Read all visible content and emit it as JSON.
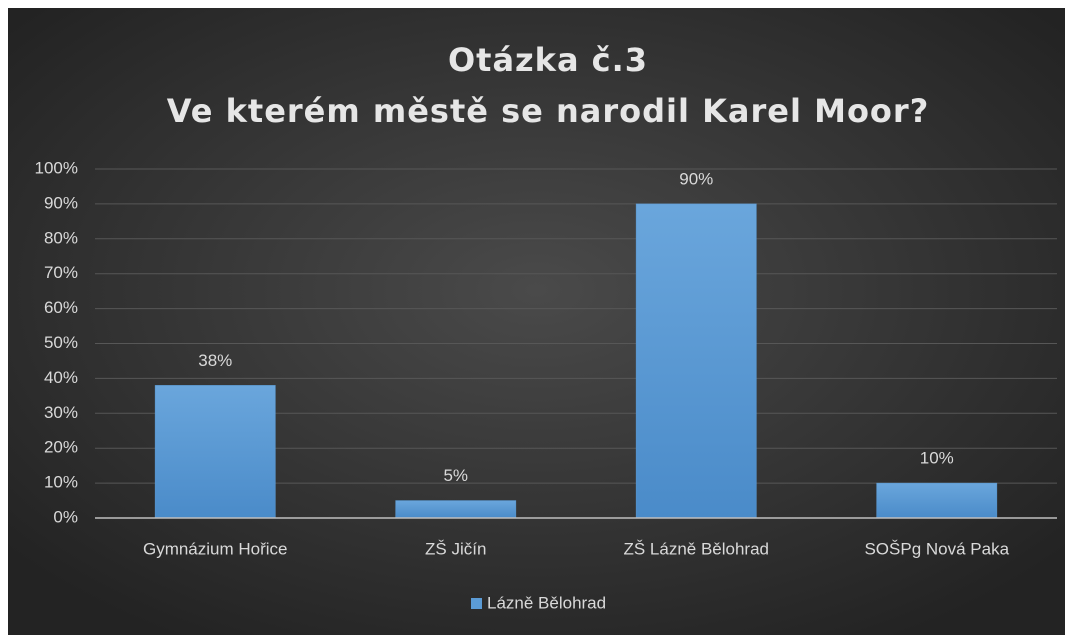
{
  "chart_data": {
    "type": "bar",
    "title": "Otázka č.3",
    "subtitle": "Ve kterém městě se narodil Karel Moor?",
    "categories": [
      "Gymnázium Hořice",
      "ZŠ Jičín",
      "ZŠ Lázně Bělohrad",
      "SOŠPg Nová Paka"
    ],
    "series": [
      {
        "name": "Lázně Bělohrad",
        "color": "#5b9bd5",
        "values": [
          38,
          5,
          90,
          10
        ],
        "value_labels": [
          "38%",
          "5%",
          "90%",
          "10%"
        ]
      }
    ],
    "ylim": [
      0,
      100
    ],
    "yticks": [
      {
        "value": 0,
        "label": "0%"
      },
      {
        "value": 10,
        "label": "10%"
      },
      {
        "value": 20,
        "label": "20%"
      },
      {
        "value": 30,
        "label": "30%"
      },
      {
        "value": 40,
        "label": "40%"
      },
      {
        "value": 50,
        "label": "50%"
      },
      {
        "value": 60,
        "label": "60%"
      },
      {
        "value": 70,
        "label": "70%"
      },
      {
        "value": 80,
        "label": "80%"
      },
      {
        "value": 90,
        "label": "90%"
      },
      {
        "value": 100,
        "label": "100%"
      }
    ],
    "grid": true,
    "legend": "bottom"
  }
}
